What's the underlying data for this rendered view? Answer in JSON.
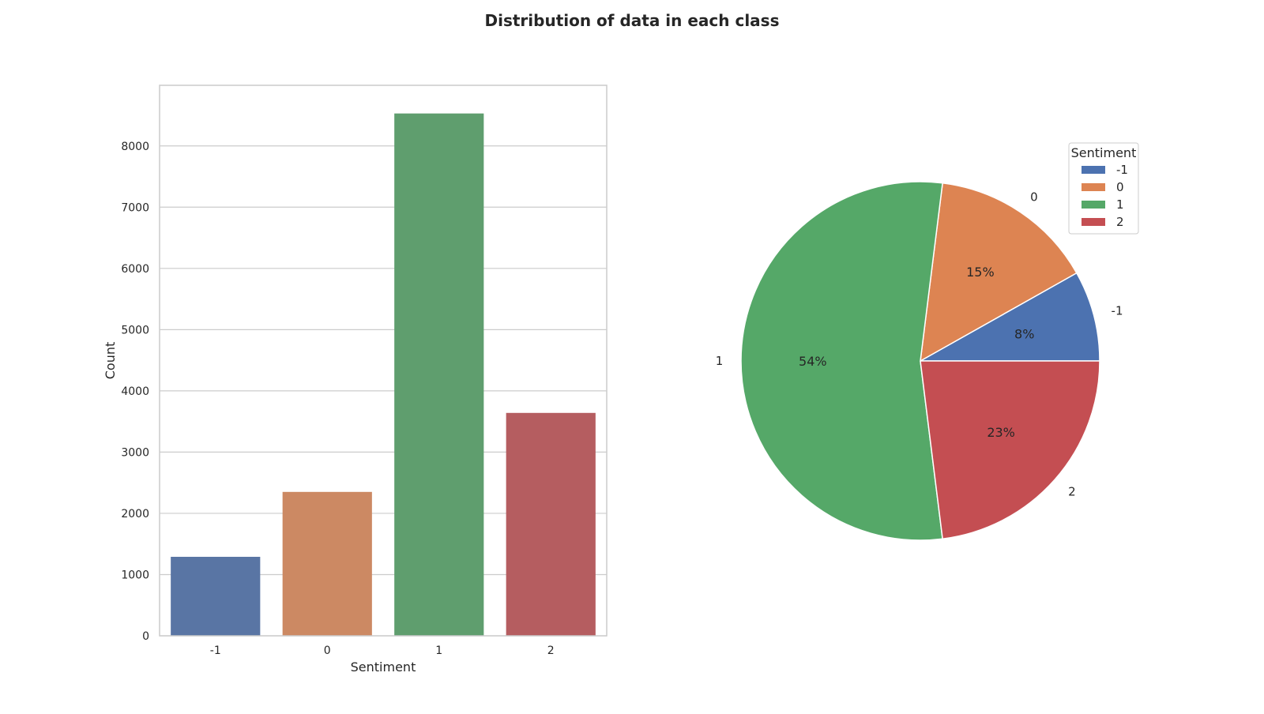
{
  "figure": {
    "title": "Distribution of data in each class"
  },
  "chart_data": [
    {
      "type": "bar",
      "categories": [
        "-1",
        "0",
        "1",
        "2"
      ],
      "values": [
        1290,
        2350,
        8530,
        3640
      ],
      "colors": [
        "#5975a4",
        "#cc8963",
        "#5f9e6e",
        "#b55d60"
      ],
      "xlabel": "Sentiment",
      "ylabel": "Count",
      "ylim": [
        0,
        8990
      ],
      "yticks": [
        0,
        1000,
        2000,
        3000,
        4000,
        5000,
        6000,
        7000,
        8000
      ],
      "grid": true,
      "legend": "none"
    },
    {
      "type": "pie",
      "labels": [
        "-1",
        "0",
        "1",
        "2"
      ],
      "values": [
        1290,
        2350,
        8530,
        3640
      ],
      "percent_labels": [
        "8%",
        "15%",
        "54%",
        "23%"
      ],
      "colors": [
        "#4c72b0",
        "#dd8452",
        "#55a868",
        "#c44e52"
      ],
      "start_angle": 0,
      "direction": "counterclockwise",
      "legend": {
        "title": "Sentiment",
        "entries": [
          "-1",
          "0",
          "1",
          "2"
        ],
        "placement": "upper right"
      }
    }
  ]
}
